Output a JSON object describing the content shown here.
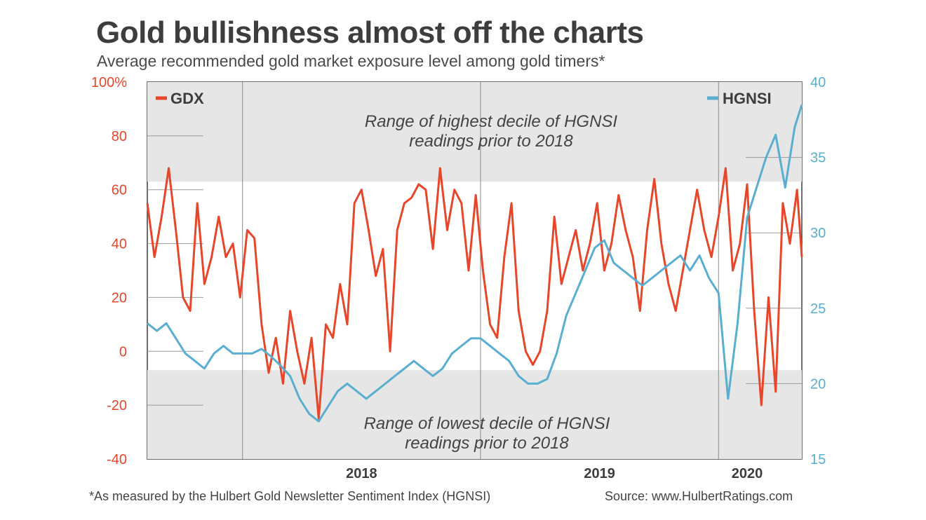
{
  "header": {
    "title": "Gold bullishness almost off the charts",
    "subtitle": "Average recommended gold market exposure level among gold timers*"
  },
  "footer": {
    "footnote": "*As measured by the Hulbert Gold Newsletter Sentiment Index (HGNSI)",
    "source": "Source: www.HulbertRatings.com"
  },
  "colors": {
    "gdx": "#e8462a",
    "hgnsi": "#5aaed0",
    "band": "#e6e6e6",
    "axis_text": "#3d3d3d"
  },
  "chart_data": {
    "type": "line",
    "title": "Gold bullishness almost off the charts",
    "subtitle": "Average recommended gold market exposure level among gold timers*",
    "x_range": [
      2017.6,
      2020.35
    ],
    "x_ticks": [
      {
        "label": "2018",
        "value": 2018.0
      },
      {
        "label": "2019",
        "value": 2019.0
      },
      {
        "label": "2020",
        "value": 2020.0
      }
    ],
    "x_tick_labels": [
      {
        "label": "2018",
        "value": 2018.5
      },
      {
        "label": "2019",
        "value": 2019.5
      },
      {
        "label": "2020",
        "value": 2020.12
      }
    ],
    "y_left": {
      "range": [
        -40,
        100
      ],
      "ticks": [
        -40,
        -20,
        0,
        20,
        40,
        60,
        80,
        100
      ],
      "tick_labels": [
        "-40",
        "-20",
        "0",
        "20",
        "40",
        "60",
        "80",
        "100%"
      ]
    },
    "y_right": {
      "range": [
        15,
        40
      ],
      "ticks": [
        15,
        20,
        25,
        30,
        35,
        40
      ],
      "tick_labels": [
        "15",
        "20",
        "25",
        "30",
        "35",
        "40"
      ]
    },
    "bands": [
      {
        "label_lines": [
          "Range of highest decile of HGNSI",
          "readings prior to 2018"
        ],
        "axis": "left",
        "from": 63,
        "to": 100
      },
      {
        "label_lines": [
          "Range of lowest decile of HGNSI",
          "readings prior to 2018"
        ],
        "axis": "left",
        "from": -40,
        "to": -7
      }
    ],
    "legend": {
      "left": "GDX",
      "right": "HGNSI"
    },
    "series": [
      {
        "name": "GDX",
        "axis": "left",
        "x": [
          2017.6,
          2017.63,
          2017.66,
          2017.69,
          2017.72,
          2017.75,
          2017.78,
          2017.81,
          2017.84,
          2017.87,
          2017.9,
          2017.93,
          2017.96,
          2017.99,
          2018.02,
          2018.05,
          2018.08,
          2018.11,
          2018.14,
          2018.17,
          2018.2,
          2018.23,
          2018.26,
          2018.29,
          2018.32,
          2018.35,
          2018.38,
          2018.41,
          2018.44,
          2018.47,
          2018.5,
          2018.53,
          2018.56,
          2018.59,
          2018.62,
          2018.65,
          2018.68,
          2018.71,
          2018.74,
          2018.77,
          2018.8,
          2018.83,
          2018.86,
          2018.89,
          2018.92,
          2018.95,
          2018.98,
          2019.01,
          2019.04,
          2019.07,
          2019.1,
          2019.13,
          2019.16,
          2019.19,
          2019.22,
          2019.25,
          2019.28,
          2019.31,
          2019.34,
          2019.37,
          2019.4,
          2019.43,
          2019.46,
          2019.49,
          2019.52,
          2019.55,
          2019.58,
          2019.61,
          2019.64,
          2019.67,
          2019.7,
          2019.73,
          2019.76,
          2019.79,
          2019.82,
          2019.85,
          2019.88,
          2019.91,
          2019.94,
          2019.97,
          2020.0,
          2020.03,
          2020.06,
          2020.09,
          2020.12,
          2020.15,
          2020.18,
          2020.21,
          2020.24,
          2020.27,
          2020.3,
          2020.33,
          2020.35
        ],
        "values": [
          55,
          35,
          50,
          68,
          45,
          20,
          15,
          55,
          25,
          35,
          50,
          35,
          40,
          20,
          45,
          42,
          10,
          -8,
          5,
          -12,
          15,
          0,
          -12,
          5,
          -25,
          10,
          5,
          25,
          10,
          55,
          60,
          45,
          28,
          38,
          0,
          45,
          55,
          57,
          62,
          60,
          38,
          68,
          45,
          60,
          55,
          30,
          58,
          30,
          10,
          5,
          35,
          55,
          15,
          0,
          -5,
          0,
          15,
          50,
          25,
          35,
          45,
          30,
          40,
          55,
          30,
          40,
          58,
          45,
          35,
          15,
          45,
          64,
          40,
          25,
          15,
          30,
          45,
          60,
          45,
          35,
          50,
          68,
          30,
          40,
          62,
          15,
          -20,
          20,
          -15,
          55,
          40,
          60,
          35
        ]
      },
      {
        "name": "HGNSI",
        "axis": "right",
        "x": [
          2017.6,
          2017.64,
          2017.68,
          2017.72,
          2017.76,
          2017.8,
          2017.84,
          2017.88,
          2017.92,
          2017.96,
          2018.0,
          2018.04,
          2018.08,
          2018.12,
          2018.16,
          2018.2,
          2018.24,
          2018.28,
          2018.32,
          2018.36,
          2018.4,
          2018.44,
          2018.48,
          2018.52,
          2018.56,
          2018.6,
          2018.64,
          2018.68,
          2018.72,
          2018.76,
          2018.8,
          2018.84,
          2018.88,
          2018.92,
          2018.96,
          2019.0,
          2019.04,
          2019.08,
          2019.12,
          2019.16,
          2019.2,
          2019.24,
          2019.28,
          2019.32,
          2019.36,
          2019.4,
          2019.44,
          2019.48,
          2019.52,
          2019.56,
          2019.6,
          2019.64,
          2019.68,
          2019.72,
          2019.76,
          2019.8,
          2019.84,
          2019.88,
          2019.92,
          2019.96,
          2020.0,
          2020.04,
          2020.08,
          2020.12,
          2020.16,
          2020.2,
          2020.24,
          2020.28,
          2020.32,
          2020.35
        ],
        "values": [
          24,
          23.5,
          24,
          23,
          22,
          21.5,
          21,
          22,
          22.5,
          22,
          22,
          22,
          22.3,
          21.8,
          21.2,
          20.5,
          19,
          18,
          17.5,
          18.5,
          19.5,
          20,
          19.5,
          19,
          19.5,
          20,
          20.5,
          21,
          21.5,
          21,
          20.5,
          21,
          22,
          22.5,
          23,
          23,
          22.5,
          22,
          21.5,
          20.5,
          20,
          20,
          20.3,
          22,
          24.5,
          26,
          27.5,
          29,
          29.5,
          28,
          27.5,
          27,
          26.5,
          27,
          27.5,
          28,
          28.5,
          27.5,
          28.5,
          27,
          26,
          19,
          24,
          31,
          33,
          35,
          36.5,
          33,
          37,
          38.5
        ]
      }
    ]
  }
}
